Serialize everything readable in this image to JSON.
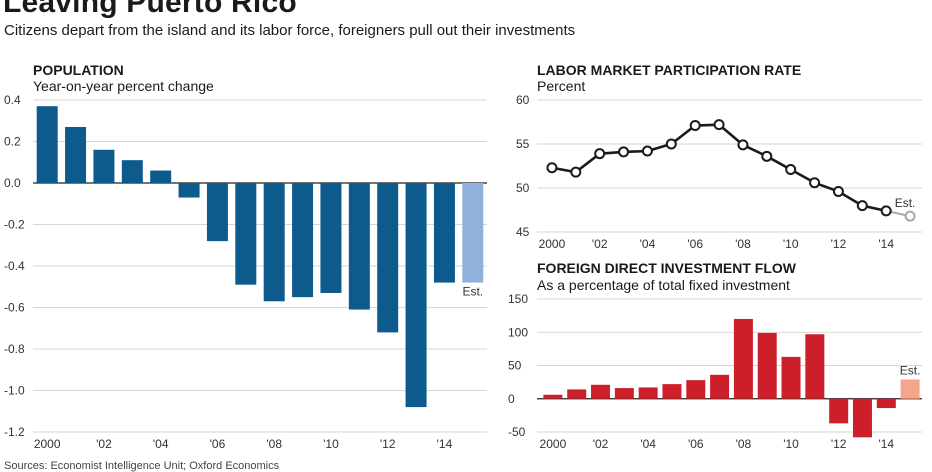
{
  "figure": {
    "title": "Leaving Puerto Rico",
    "subtitle": "Citizens depart from the island and its labor force, foreigners pull out their investments",
    "source": "Sources: Economist Intelligence Unit; Oxford Economics"
  },
  "chart_data": [
    {
      "type": "bar",
      "title": "POPULATION",
      "subtitle": "Year-on-year percent change",
      "x": [
        2000,
        2001,
        2002,
        2003,
        2004,
        2005,
        2006,
        2007,
        2008,
        2009,
        2010,
        2011,
        2012,
        2013,
        2014,
        2015
      ],
      "values": [
        0.37,
        0.27,
        0.16,
        0.11,
        0.06,
        -0.07,
        -0.28,
        -0.49,
        -0.57,
        -0.55,
        -0.53,
        -0.61,
        -0.72,
        -1.08,
        -0.48,
        -0.48
      ],
      "ylim": [
        -1.2,
        0.4
      ],
      "yticks": [
        0.4,
        0.2,
        0.0,
        -0.2,
        -0.4,
        -0.6,
        -0.8,
        -1.0,
        -1.2
      ],
      "ytick_labels": [
        "0.4",
        "0.2",
        "0.0",
        "-0.2",
        "-0.4",
        "-0.6",
        "-0.8",
        "-1.0",
        "-1.2"
      ],
      "xtick_labels": [
        "2000",
        "'02",
        "'04",
        "'06",
        "'08",
        "'10",
        "'12",
        "'14"
      ],
      "annotation": "Est.",
      "colors": {
        "bar": "#0d5b8c",
        "estimate": "#8fb1dc"
      },
      "grid": true
    },
    {
      "type": "line",
      "title": "LABOR MARKET PARTICIPATION RATE",
      "subtitle": "Percent",
      "x": [
        2000,
        2001,
        2002,
        2003,
        2004,
        2005,
        2006,
        2007,
        2008,
        2009,
        2010,
        2011,
        2012,
        2013,
        2014,
        2015
      ],
      "values": [
        52.3,
        51.8,
        53.9,
        54.1,
        54.2,
        55.0,
        57.1,
        57.2,
        54.9,
        53.6,
        52.1,
        50.6,
        49.6,
        48.0,
        47.4,
        46.8
      ],
      "ylim": [
        45,
        60
      ],
      "yticks": [
        60,
        55,
        50,
        45
      ],
      "ytick_labels": [
        "60",
        "55",
        "50",
        "45"
      ],
      "xtick_labels": [
        "2000",
        "'02",
        "'04",
        "'06",
        "'08",
        "'10",
        "'12",
        "'14"
      ],
      "annotation": "Est.",
      "colors": {
        "line": "#1a1a1a",
        "estimate": "#a8a8a8"
      },
      "grid": true
    },
    {
      "type": "bar",
      "title": "FOREIGN DIRECT INVESTMENT FLOW",
      "subtitle": "As a percentage of total fixed investment",
      "x": [
        2000,
        2001,
        2002,
        2003,
        2004,
        2005,
        2006,
        2007,
        2008,
        2009,
        2010,
        2011,
        2012,
        2013,
        2014,
        2015
      ],
      "values": [
        6,
        14,
        21,
        16,
        17,
        22,
        28,
        36,
        120,
        99,
        63,
        97,
        -37,
        -58,
        -14,
        29
      ],
      "ylim": [
        -50,
        150
      ],
      "yticks": [
        150,
        100,
        50,
        0,
        -50
      ],
      "ytick_labels": [
        "150",
        "100",
        "50",
        "0",
        "-50"
      ],
      "xtick_labels": [
        "2000",
        "'02",
        "'04",
        "'06",
        "'08",
        "'10",
        "'12",
        "'14"
      ],
      "annotation": "Est.",
      "colors": {
        "bar": "#cc1f2a",
        "estimate": "#f4a58a"
      },
      "grid": true
    }
  ]
}
